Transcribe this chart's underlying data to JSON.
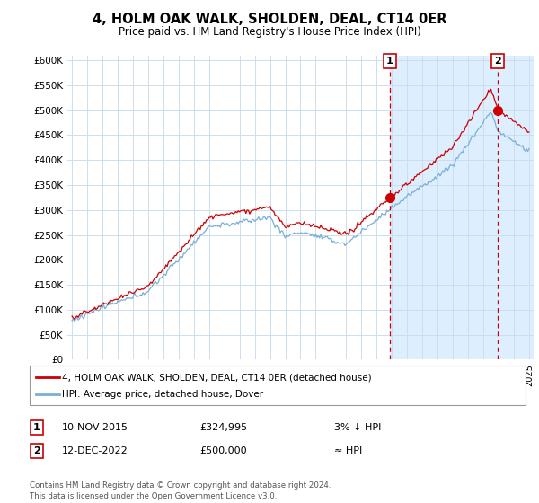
{
  "title": "4, HOLM OAK WALK, SHOLDEN, DEAL, CT14 0ER",
  "subtitle": "Price paid vs. HM Land Registry's House Price Index (HPI)",
  "ylabel_ticks": [
    0,
    50000,
    100000,
    150000,
    200000,
    250000,
    300000,
    350000,
    400000,
    450000,
    500000,
    550000,
    600000
  ],
  "ylabel_labels": [
    "£0",
    "£50K",
    "£100K",
    "£150K",
    "£200K",
    "£250K",
    "£300K",
    "£350K",
    "£400K",
    "£450K",
    "£500K",
    "£550K",
    "£600K"
  ],
  "ylim": [
    0,
    610000
  ],
  "xlim_start": 1994.7,
  "xlim_end": 2025.3,
  "line_color_red": "#cc0000",
  "line_color_blue": "#7ab0d4",
  "vline_color": "#cc0000",
  "highlight_color": "#ddeeff",
  "marker1_year": 2015.87,
  "marker2_year": 2022.96,
  "sale1_date": "10-NOV-2015",
  "sale1_price": "£324,995",
  "sale1_hpi": "3% ↓ HPI",
  "sale2_date": "12-DEC-2022",
  "sale2_price": "£500,000",
  "sale2_hpi": "≈ HPI",
  "legend_line1": "4, HOLM OAK WALK, SHOLDEN, DEAL, CT14 0ER (detached house)",
  "legend_line2": "HPI: Average price, detached house, Dover",
  "footnote": "Contains HM Land Registry data © Crown copyright and database right 2024.\nThis data is licensed under the Open Government Licence v3.0.",
  "grid_color": "#ccddee",
  "sale1_price_val": 324995,
  "sale2_price_val": 500000
}
